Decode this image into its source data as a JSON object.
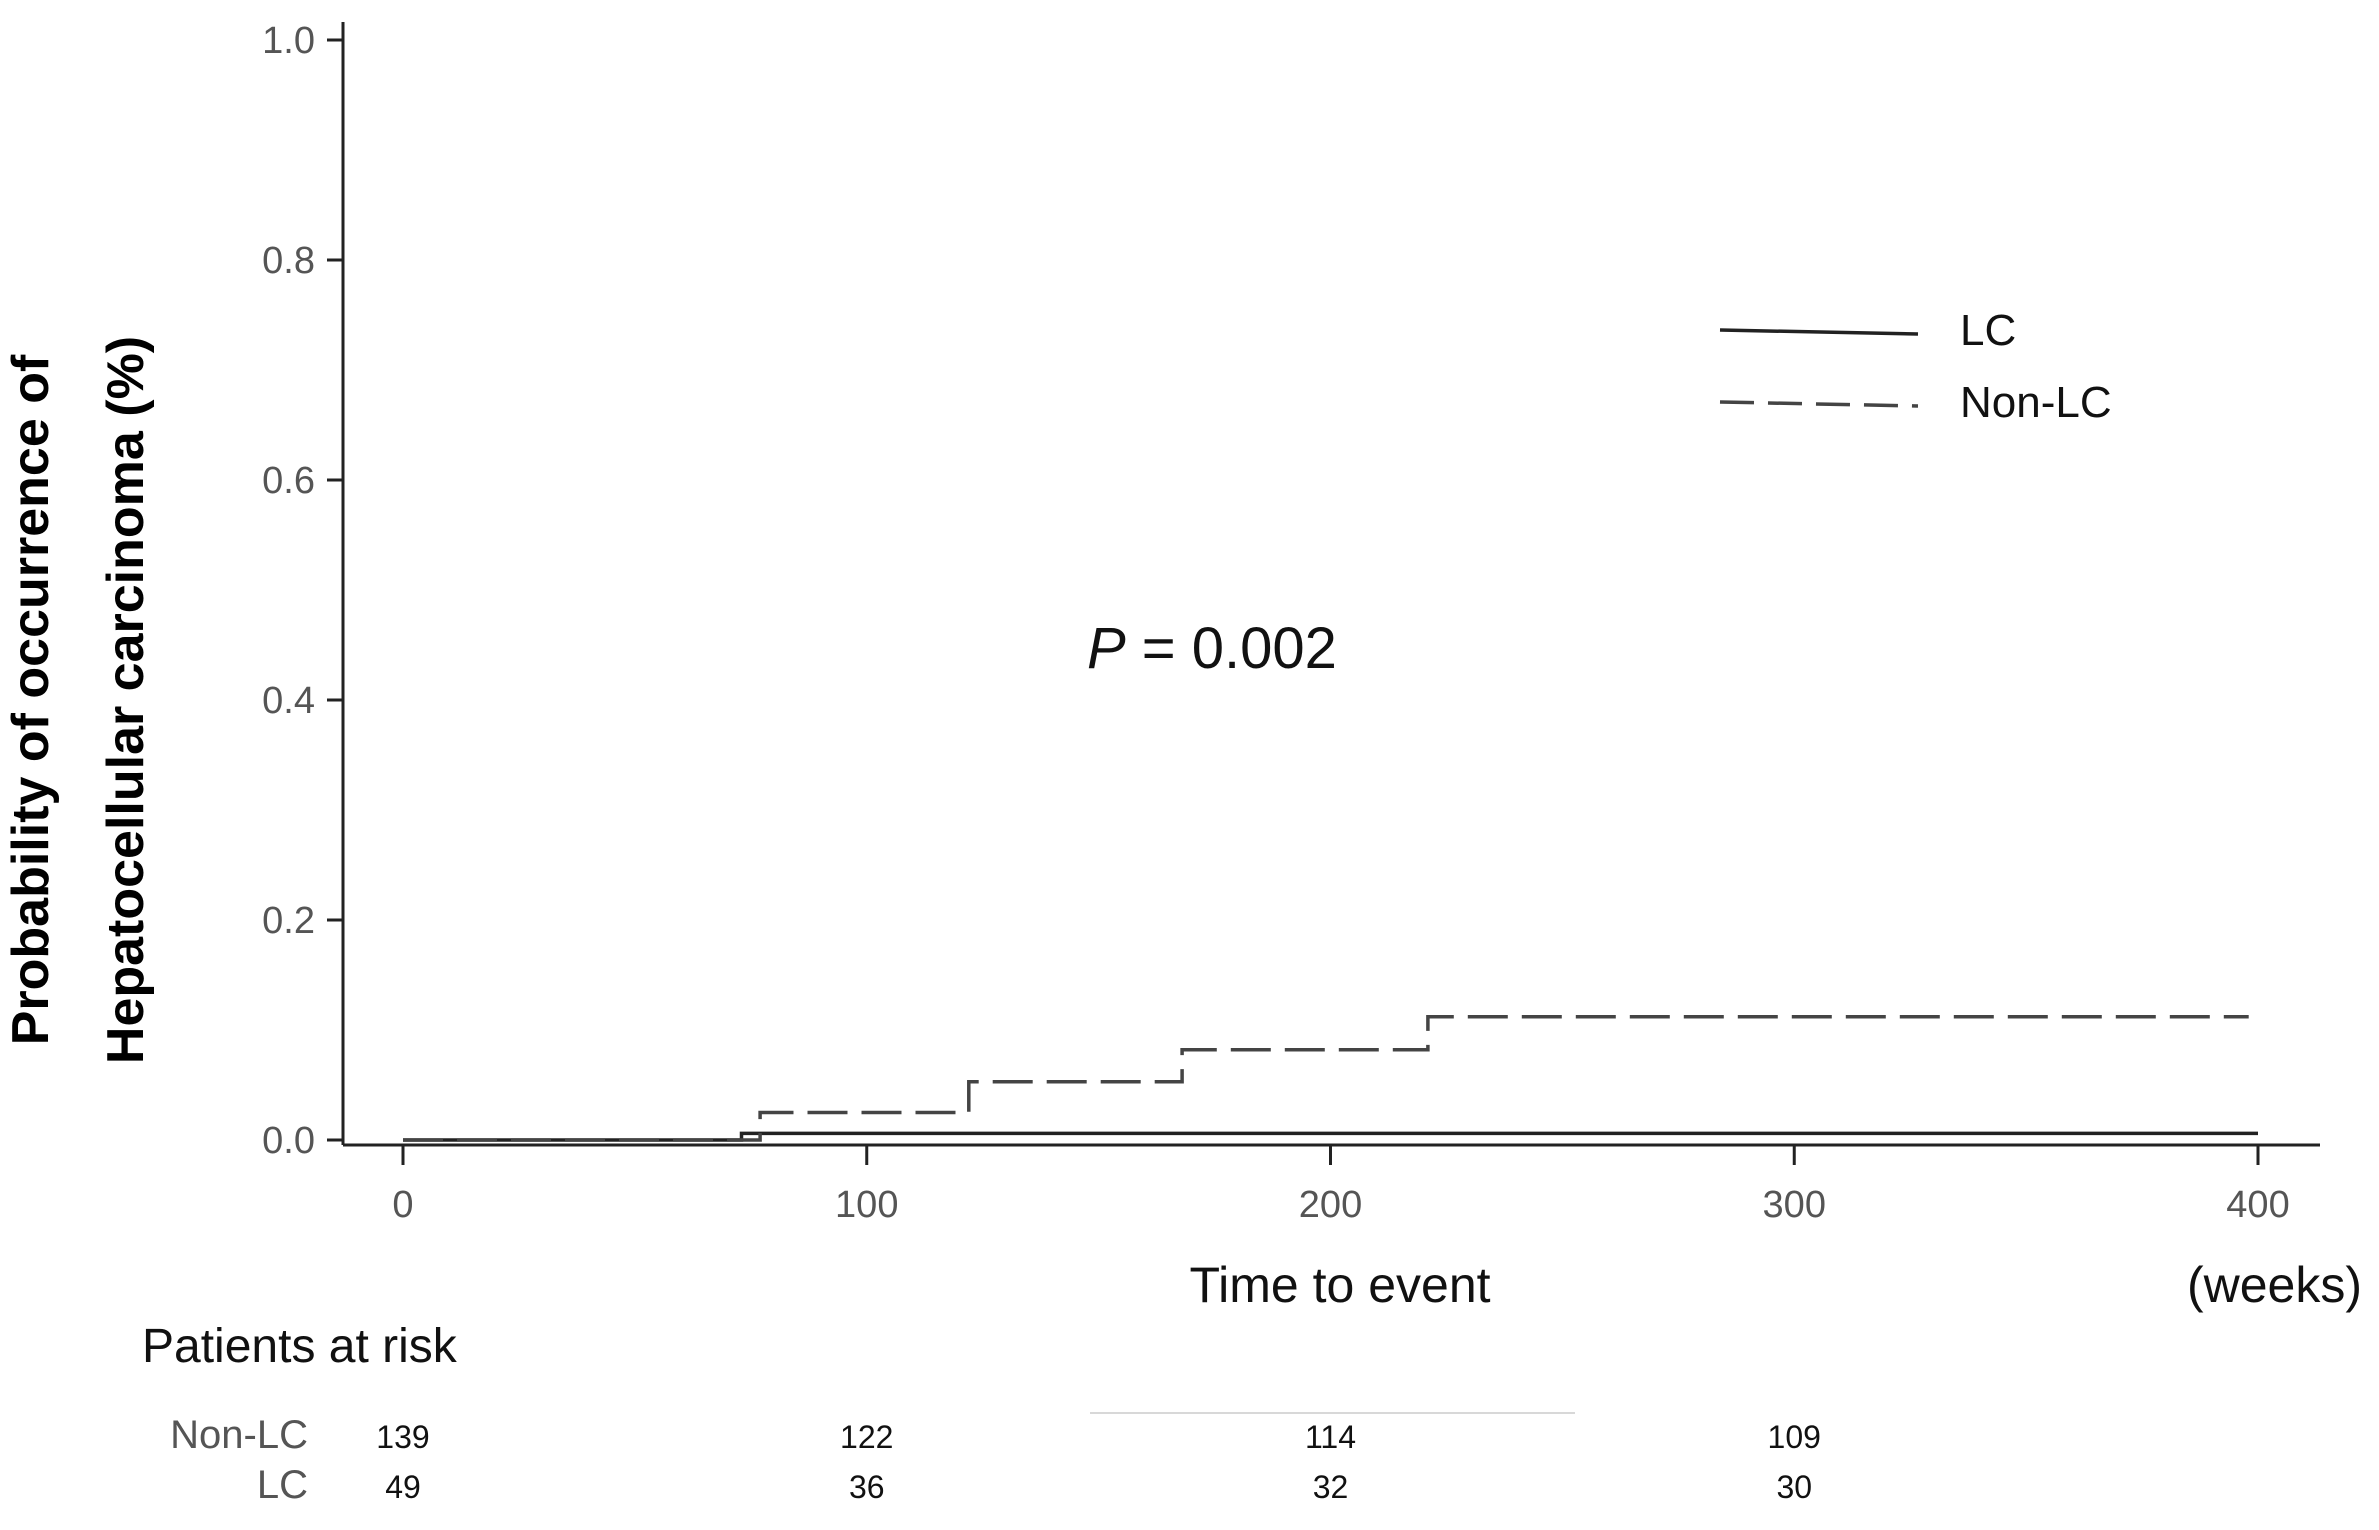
{
  "chart_data": {
    "type": "line",
    "title": "",
    "ylabel_lines": [
      "Probability of occurrence of",
      "Hepatocellular carcinoma (%)"
    ],
    "xlabel": "Time to event",
    "xunit": "(weeks)",
    "xlim": [
      0,
      400
    ],
    "ylim": [
      0,
      1.0
    ],
    "xticks": [
      0,
      100,
      200,
      300,
      400
    ],
    "xtick_labels": [
      "0",
      "100",
      "200",
      "300",
      "400"
    ],
    "yticks": [
      0.0,
      0.2,
      0.4,
      0.6,
      0.8,
      1.0
    ],
    "ytick_labels": [
      "0.0",
      "0.2",
      "0.4",
      "0.6",
      "0.8",
      "1.0"
    ],
    "grid": false,
    "legend_position": "top-right",
    "series": [
      {
        "name": "LC",
        "line_style": "solid",
        "color": "#222222",
        "steps": [
          [
            0,
            0.0
          ],
          [
            73,
            0.0
          ],
          [
            73,
            0.006
          ],
          [
            400,
            0.006
          ]
        ]
      },
      {
        "name": "Non-LC",
        "line_style": "dashed",
        "color": "#444444",
        "steps": [
          [
            0,
            0.0
          ],
          [
            77,
            0.0
          ],
          [
            77,
            0.025
          ],
          [
            122,
            0.025
          ],
          [
            122,
            0.053
          ],
          [
            168,
            0.053
          ],
          [
            168,
            0.082
          ],
          [
            221,
            0.082
          ],
          [
            221,
            0.112
          ],
          [
            398,
            0.112
          ]
        ]
      }
    ],
    "annotations": {
      "p_label": "P",
      "p_text": " = 0.002"
    },
    "risk_table": {
      "title": "Patients at risk",
      "times": [
        0,
        100,
        200,
        300
      ],
      "rows": [
        {
          "group": "Non-LC",
          "values": [
            "139",
            "122",
            "114",
            "109"
          ]
        },
        {
          "group": "LC",
          "values": [
            "49",
            "36",
            "32",
            "30"
          ]
        }
      ]
    }
  }
}
